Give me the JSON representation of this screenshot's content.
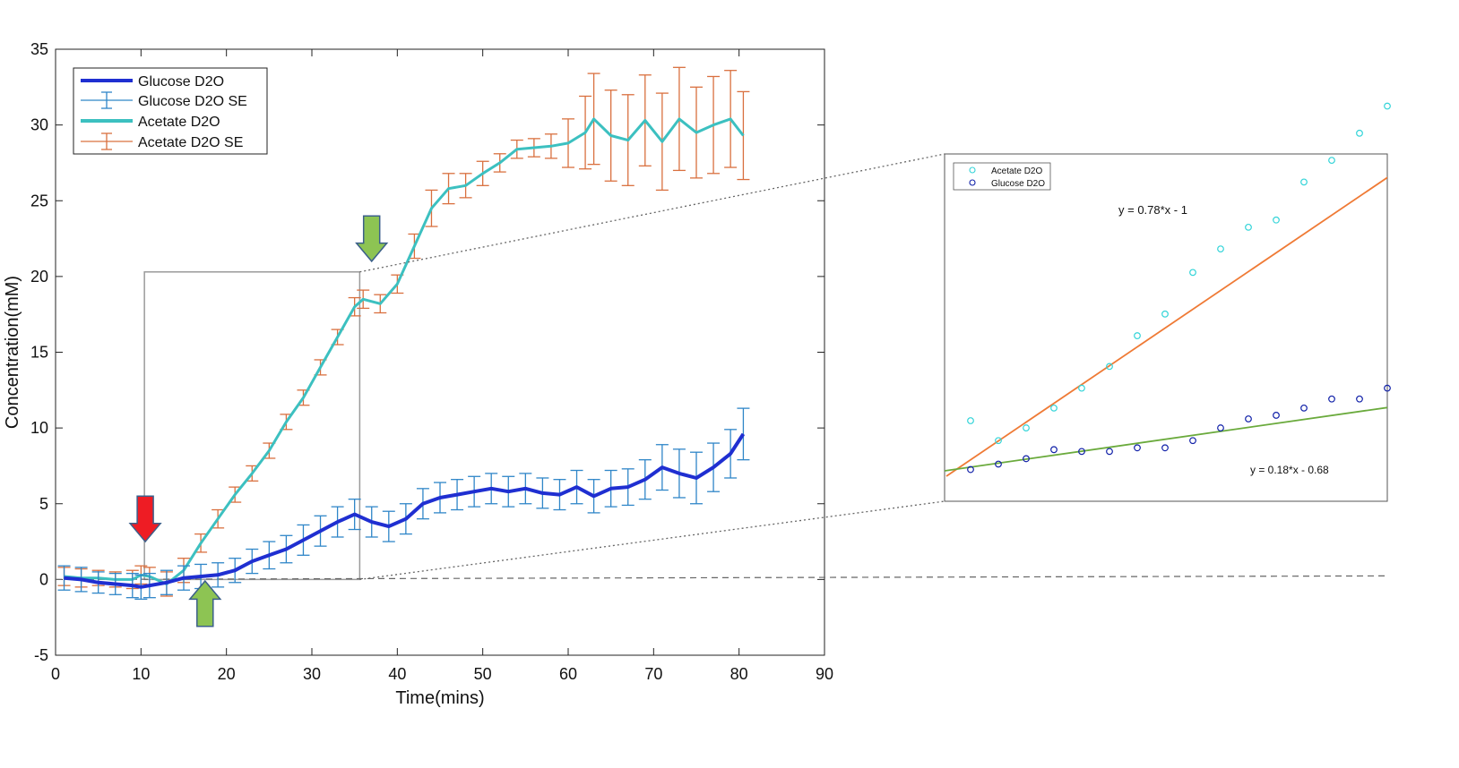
{
  "chart_data": [
    {
      "type": "line",
      "title": "",
      "xlabel": "Time(mins)",
      "ylabel": "Concentration(mM)",
      "xlim": [
        0,
        90
      ],
      "ylim": [
        -5,
        35
      ],
      "xticks": [
        0,
        10,
        20,
        30,
        40,
        50,
        60,
        70,
        80,
        90
      ],
      "yticks": [
        -5,
        0,
        5,
        10,
        15,
        20,
        25,
        30,
        35
      ],
      "grid": false,
      "legend_position": "top-left",
      "legend": [
        "Glucose D2O",
        "Glucose D2O SE",
        "Acetate D2O",
        "Acetate D2O SE"
      ],
      "colors": {
        "glucose": "#1f2fd1",
        "glucose_se": "#2f86c8",
        "acetate": "#3cc0c0",
        "acetate_se": "#d9703f",
        "arrow_red": "#ee1c24",
        "arrow_green": "#8dc453"
      },
      "series": [
        {
          "name": "Glucose D2O",
          "x": [
            1,
            3,
            5,
            7,
            9,
            10,
            11,
            13,
            15,
            17,
            19,
            21,
            23,
            25,
            27,
            29,
            31,
            33,
            35,
            37,
            39,
            41,
            43,
            45,
            47,
            49,
            51,
            53,
            55,
            57,
            59,
            61,
            63,
            65,
            67,
            69,
            71,
            73,
            75,
            77,
            79,
            80.5
          ],
          "y": [
            0.1,
            0.0,
            -0.2,
            -0.3,
            -0.4,
            -0.5,
            -0.4,
            -0.2,
            0.1,
            0.2,
            0.3,
            0.6,
            1.2,
            1.6,
            2.0,
            2.6,
            3.2,
            3.8,
            4.3,
            3.8,
            3.5,
            4.0,
            5.0,
            5.4,
            5.6,
            5.8,
            6.0,
            5.8,
            6.0,
            5.7,
            5.6,
            6.1,
            5.5,
            6.0,
            6.1,
            6.6,
            7.4,
            7.0,
            6.7,
            7.4,
            8.3,
            9.6
          ],
          "se": [
            0.8,
            0.8,
            0.7,
            0.7,
            0.8,
            0.8,
            0.8,
            0.8,
            0.8,
            0.8,
            0.8,
            0.8,
            0.8,
            0.9,
            0.9,
            1.0,
            1.0,
            1.0,
            1.0,
            1.0,
            1.0,
            1.0,
            1.0,
            1.0,
            1.0,
            1.0,
            1.0,
            1.0,
            1.0,
            1.0,
            1.0,
            1.1,
            1.1,
            1.2,
            1.2,
            1.3,
            1.5,
            1.6,
            1.7,
            1.6,
            1.6,
            1.7
          ]
        },
        {
          "name": "Acetate D2O",
          "x": [
            1,
            3,
            5,
            7,
            9,
            10,
            11,
            13,
            15,
            17,
            19,
            21,
            23,
            25,
            27,
            29,
            31,
            33,
            35,
            36,
            38,
            40,
            42,
            44,
            46,
            48,
            50,
            52,
            54,
            56,
            58,
            60,
            62,
            63,
            65,
            67,
            69,
            71,
            73,
            75,
            77,
            79,
            80.5
          ],
          "y": [
            0.2,
            0.1,
            0.1,
            0.0,
            0.0,
            0.3,
            0.2,
            -0.3,
            0.6,
            2.4,
            4.0,
            5.6,
            7.0,
            8.5,
            10.4,
            12.0,
            14.0,
            16.0,
            18.0,
            18.5,
            18.2,
            19.5,
            22.0,
            24.5,
            25.8,
            26.0,
            26.8,
            27.5,
            28.4,
            28.5,
            28.6,
            28.8,
            29.5,
            30.4,
            29.3,
            29.0,
            30.3,
            28.9,
            30.4,
            29.5,
            30.0,
            30.4,
            29.3
          ],
          "se": [
            0.6,
            0.6,
            0.5,
            0.5,
            0.6,
            0.6,
            0.6,
            0.8,
            0.8,
            0.6,
            0.6,
            0.5,
            0.5,
            0.5,
            0.5,
            0.5,
            0.5,
            0.5,
            0.6,
            0.6,
            0.6,
            0.6,
            0.8,
            1.2,
            1.0,
            0.8,
            0.8,
            0.6,
            0.6,
            0.6,
            0.8,
            1.6,
            2.4,
            3.0,
            3.0,
            3.0,
            3.0,
            3.2,
            3.4,
            3.0,
            3.2,
            3.2,
            2.9
          ]
        }
      ],
      "annotations": [
        {
          "type": "arrow-down",
          "color": "red",
          "x": 10.5,
          "y_tip": 2.5,
          "y_tail": 5.5
        },
        {
          "type": "arrow-down",
          "color": "green",
          "x": 37,
          "y_tip": 21.0,
          "y_tail": 24.0
        },
        {
          "type": "arrow-up",
          "color": "green",
          "x": 17.5,
          "y_tip": -0.1,
          "y_tail": -3.1
        },
        {
          "type": "zoom-box",
          "x": [
            10.4,
            35.6
          ],
          "y": [
            0,
            20.3
          ]
        }
      ],
      "baseline": {
        "y": 0,
        "style": "dashed"
      }
    },
    {
      "type": "scatter",
      "title": "",
      "xlabel": "",
      "ylabel": "",
      "legend": [
        "Acetate D2O",
        "Glucose D2O"
      ],
      "legend_position": "top-left",
      "colors": {
        "acetate": "#33d4d8",
        "glucose": "#1020a8",
        "acetate_fit": "#ef7a35",
        "glucose_fit": "#6aaa3c"
      },
      "series": [
        {
          "name": "Acetate D2O",
          "x": [
            1,
            2,
            3,
            4,
            5,
            6,
            7,
            8,
            9,
            10,
            11,
            12,
            13,
            14,
            15,
            16
          ],
          "y": [
            10.4,
            9.3,
            10.0,
            11.1,
            12.2,
            13.4,
            15.1,
            16.3,
            18.6,
            19.9,
            21.1,
            21.5,
            23.6,
            24.8,
            26.3,
            27.8
          ]
        },
        {
          "name": "Glucose D2O",
          "x": [
            1,
            2,
            3,
            4,
            5,
            6,
            7,
            8,
            9,
            10,
            11,
            12,
            13,
            14,
            15,
            16
          ],
          "y": [
            7.7,
            8.0,
            8.3,
            8.8,
            8.7,
            8.7,
            8.9,
            8.9,
            9.3,
            10.0,
            10.5,
            10.7,
            11.1,
            11.6,
            11.6,
            12.2
          ]
        }
      ],
      "fits": [
        {
          "series": "Acetate D2O",
          "equation": "y = 0.78*x - 1",
          "slope": 0.78,
          "intercept": -1
        },
        {
          "series": "Glucose D2O",
          "equation": "y = 0.18*x - 0.68",
          "slope": 0.18,
          "intercept": -0.68
        }
      ]
    }
  ]
}
